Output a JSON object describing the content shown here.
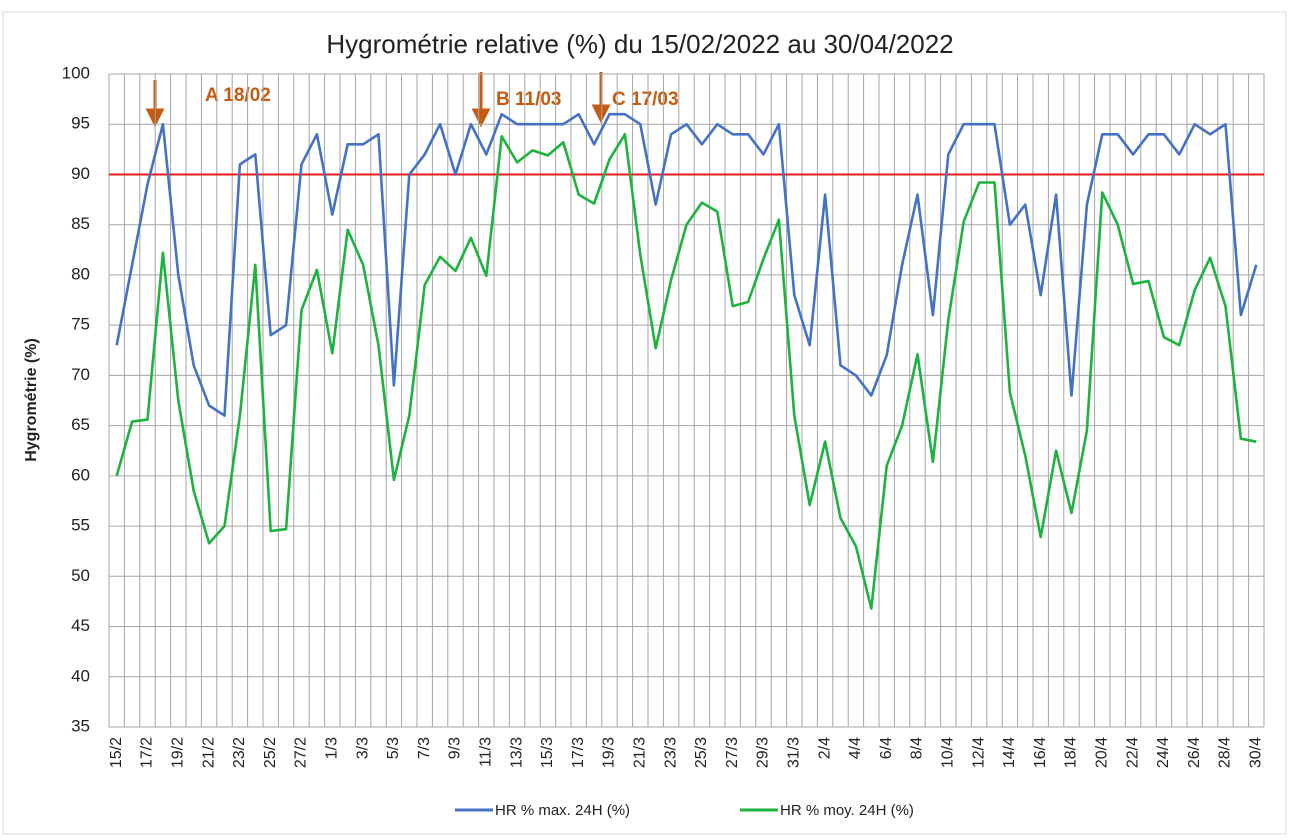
{
  "chart_data": {
    "type": "line",
    "title": "Hygrométrie relative (%) du 15/02/2022 au 30/04/2022",
    "y_label": "Hygrométrie (%)",
    "categories": [
      "15/2",
      null,
      "17/2",
      null,
      "19/2",
      null,
      "21/2",
      null,
      "23/2",
      null,
      "25/2",
      null,
      "27/2",
      null,
      "1/3",
      null,
      "3/3",
      null,
      "5/3",
      null,
      "7/3",
      null,
      "9/3",
      null,
      "11/3",
      null,
      "13/3",
      null,
      "15/3",
      null,
      "17/3",
      null,
      "19/3",
      null,
      "21/3",
      null,
      "23/3",
      null,
      "25/3",
      null,
      "27/3",
      null,
      "29/3",
      null,
      "31/3",
      null,
      "2/4",
      null,
      "4/4",
      null,
      "6/4",
      null,
      "8/4",
      null,
      "10/4",
      null,
      "12/4",
      null,
      "14/4",
      null,
      "16/4",
      null,
      "18/4",
      null,
      "20/4",
      null,
      "22/4",
      null,
      "24/4",
      null,
      "26/4",
      null,
      "28/4",
      null,
      "30/4"
    ],
    "series": [
      {
        "name": "HR % max. 24H (%)",
        "color": "#4472c4",
        "values": [
          73,
          81,
          89,
          95,
          80,
          71,
          67,
          66,
          91,
          92,
          74,
          75,
          91,
          94,
          86,
          93,
          93,
          94,
          69,
          90,
          92,
          95,
          90,
          95,
          92,
          96,
          95,
          95,
          95,
          95,
          96,
          93,
          96,
          96,
          95,
          87,
          94,
          95,
          93,
          95,
          94,
          94,
          92,
          95,
          78,
          73,
          88,
          71,
          70,
          68,
          72,
          81,
          88,
          76,
          92,
          95,
          95,
          95,
          85,
          87,
          78,
          88,
          68,
          87,
          94,
          94,
          92,
          94,
          94,
          92,
          95,
          94,
          95,
          76,
          81
        ]
      },
      {
        "name": "HR % moy. 24H (%)",
        "color": "#1db33f",
        "values": [
          60,
          65.4,
          65.6,
          82.2,
          67.5,
          58.5,
          53.3,
          55,
          66,
          81,
          54.5,
          54.7,
          76.5,
          80.5,
          72.2,
          84.5,
          81,
          73,
          59.6,
          66,
          79,
          81.8,
          80.4,
          83.7,
          79.9,
          93.8,
          91.2,
          92.4,
          91.9,
          93.2,
          88,
          87.1,
          91.5,
          94,
          82,
          72.7,
          79.5,
          85,
          87.2,
          86.3,
          76.9,
          77.3,
          81.6,
          85.5,
          66,
          57.1,
          63.4,
          55.8,
          53,
          46.8,
          61,
          65,
          72.1,
          61.4,
          75.5,
          85.3,
          89.2,
          89.2,
          68.3,
          62,
          53.9,
          62.5,
          56.3,
          64.5,
          88.2,
          85,
          79.1,
          79.4,
          73.8,
          73,
          78.5,
          81.7,
          76.9,
          63.7,
          63.4
        ]
      }
    ],
    "reference_line": {
      "value": 90,
      "color": "#e8191e"
    },
    "annotations": [
      "A 18/02",
      "B 11/03",
      "C 17/03"
    ],
    "annotation_color": "#c55a11",
    "ylim": [
      35,
      100
    ],
    "yticks": [
      35,
      40,
      45,
      50,
      55,
      60,
      65,
      70,
      75,
      80,
      85,
      90,
      95,
      100
    ],
    "grid": true
  }
}
